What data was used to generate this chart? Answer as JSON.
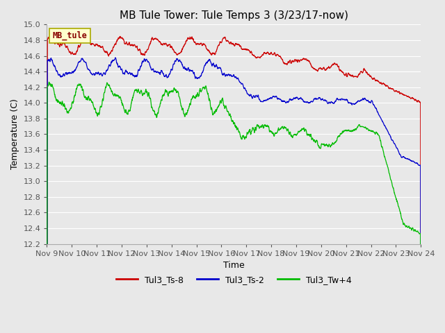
{
  "title": "MB Tule Tower: Tule Temps 3 (3/23/17-now)",
  "xlabel": "Time",
  "ylabel": "Temperature (C)",
  "ylim": [
    12.2,
    15.0
  ],
  "yticks": [
    12.2,
    12.4,
    12.6,
    12.8,
    13.0,
    13.2,
    13.4,
    13.6,
    13.8,
    14.0,
    14.2,
    14.4,
    14.6,
    14.8,
    15.0
  ],
  "xlim": [
    0,
    15
  ],
  "xtick_labels": [
    "Nov 9",
    "Nov 10",
    "Nov 11",
    "Nov 12",
    "Nov 13",
    "Nov 14",
    "Nov 15",
    "Nov 16",
    "Nov 17",
    "Nov 18",
    "Nov 19",
    "Nov 20",
    "Nov 21",
    "Nov 22",
    "Nov 23",
    "Nov 24"
  ],
  "xtick_positions": [
    0,
    1,
    2,
    3,
    4,
    5,
    6,
    7,
    8,
    9,
    10,
    11,
    12,
    13,
    14,
    15
  ],
  "line_colors": [
    "#cc0000",
    "#0000cc",
    "#00bb00"
  ],
  "legend_labels": [
    "Tul3_Ts-8",
    "Tul3_Ts-2",
    "Tul3_Tw+4"
  ],
  "legend_box_color": "#ffffcc",
  "legend_box_text": "MB_tule",
  "legend_box_text_color": "#880000",
  "plot_bg_color": "#e8e8e8",
  "grid_color": "#ffffff",
  "title_fontsize": 11,
  "axis_label_fontsize": 9,
  "tick_fontsize": 8
}
